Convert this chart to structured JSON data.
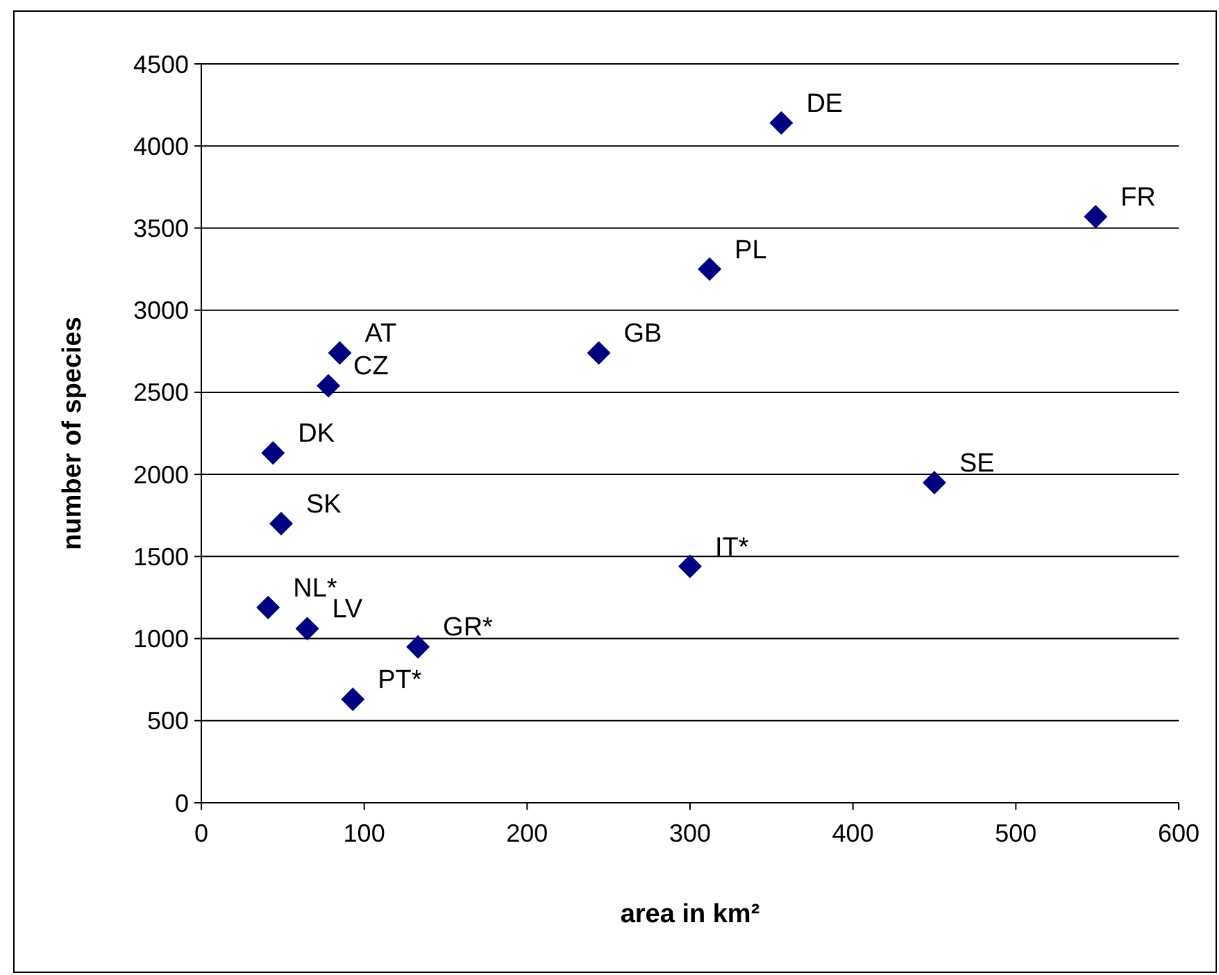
{
  "chart_data": {
    "type": "scatter",
    "xlabel": "area in km²",
    "ylabel": "number of species",
    "x": [
      356,
      549,
      312,
      244,
      85,
      78,
      44,
      49,
      450,
      300,
      41,
      65,
      133,
      93
    ],
    "series": [
      {
        "color": "#000080",
        "values": [
          4140,
          3570,
          3250,
          2740,
          2740,
          2540,
          2130,
          1700,
          1950,
          1440,
          1190,
          1060,
          950,
          630
        ]
      }
    ],
    "annotations": [
      {
        "text": "DE",
        "x": 356,
        "y": 4140
      },
      {
        "text": "FR",
        "x": 549,
        "y": 3570
      },
      {
        "text": "PL",
        "x": 312,
        "y": 3250
      },
      {
        "text": "GB",
        "x": 244,
        "y": 2740
      },
      {
        "text": "AT",
        "x": 85,
        "y": 2740
      },
      {
        "text": "CZ",
        "x": 78,
        "y": 2540
      },
      {
        "text": "DK",
        "x": 44,
        "y": 2130
      },
      {
        "text": "SK",
        "x": 49,
        "y": 1700
      },
      {
        "text": "SE",
        "x": 450,
        "y": 1950
      },
      {
        "text": "IT*",
        "x": 300,
        "y": 1440
      },
      {
        "text": "NL*",
        "x": 41,
        "y": 1190
      },
      {
        "text": "LV",
        "x": 65,
        "y": 1060
      },
      {
        "text": "GR*",
        "x": 133,
        "y": 950
      },
      {
        "text": "PT*",
        "x": 93,
        "y": 630
      }
    ],
    "xlim": [
      0,
      600
    ],
    "xticks": [
      0,
      100,
      200,
      300,
      400,
      500,
      600
    ],
    "ylim": [
      0,
      4500
    ],
    "yticks": [
      0,
      500,
      1000,
      1500,
      2000,
      2500,
      3000,
      3500,
      4000,
      4500
    ],
    "grid": "y",
    "marker": "diamond"
  }
}
